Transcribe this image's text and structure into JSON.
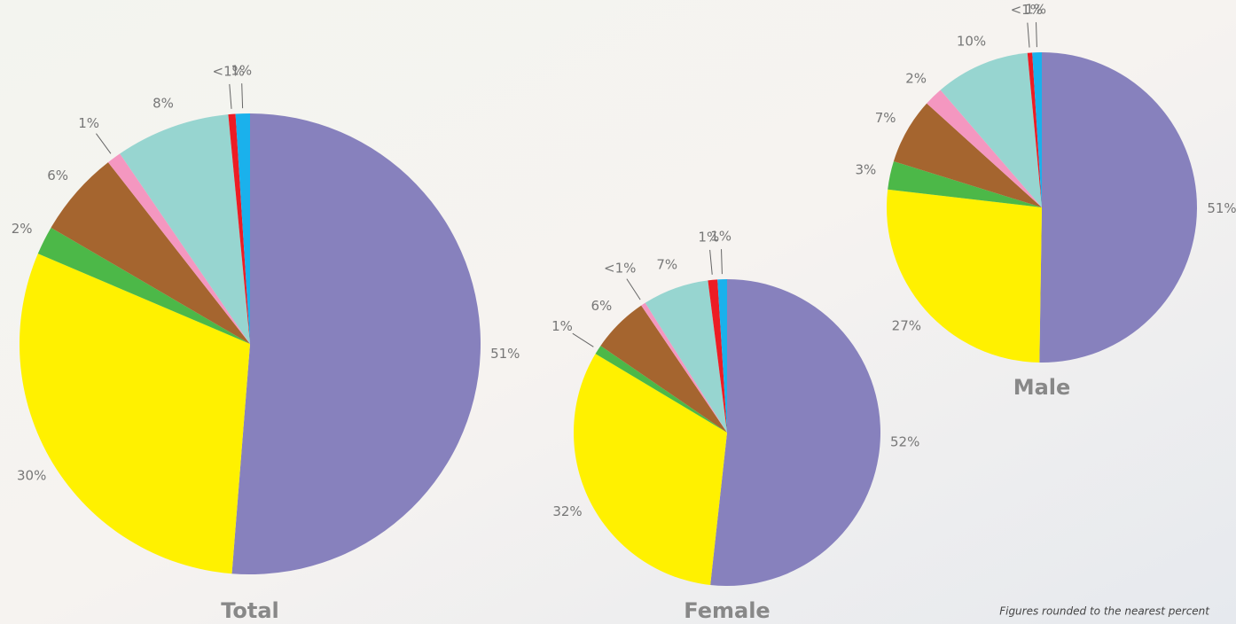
{
  "chart_data": [
    {
      "type": "pie",
      "title": "Total",
      "values": [
        51,
        30,
        2,
        6,
        1,
        8,
        0.5,
        1
      ],
      "value_labels": [
        "51%",
        "30%",
        "2%",
        "6%",
        "1%",
        "8%",
        "<1%",
        "1%"
      ],
      "colors": [
        "#8781bd",
        "#fff100",
        "#4cb848",
        "#a5652f",
        "#f497c0",
        "#97d5d0",
        "#ed1c24",
        "#1ab1ec"
      ]
    },
    {
      "type": "pie",
      "title": "Female",
      "values": [
        52,
        32,
        1,
        6,
        0.5,
        7,
        1,
        1
      ],
      "value_labels": [
        "52%",
        "32%",
        "1%",
        "6%",
        "<1%",
        "7%",
        "1%",
        "1%"
      ],
      "colors": [
        "#8781bd",
        "#fff100",
        "#4cb848",
        "#a5652f",
        "#f497c0",
        "#97d5d0",
        "#ed1c24",
        "#1ab1ec"
      ]
    },
    {
      "type": "pie",
      "title": "Male",
      "values": [
        51,
        27,
        3,
        7,
        2,
        10,
        0.5,
        1
      ],
      "value_labels": [
        "51%",
        "27%",
        "3%",
        "7%",
        "2%",
        "10%",
        "<1%",
        "1%"
      ],
      "colors": [
        "#8781bd",
        "#fff100",
        "#4cb848",
        "#a5652f",
        "#f497c0",
        "#97d5d0",
        "#ed1c24",
        "#1ab1ec"
      ]
    }
  ],
  "footnote": "Figures rounded to the nearest percent"
}
